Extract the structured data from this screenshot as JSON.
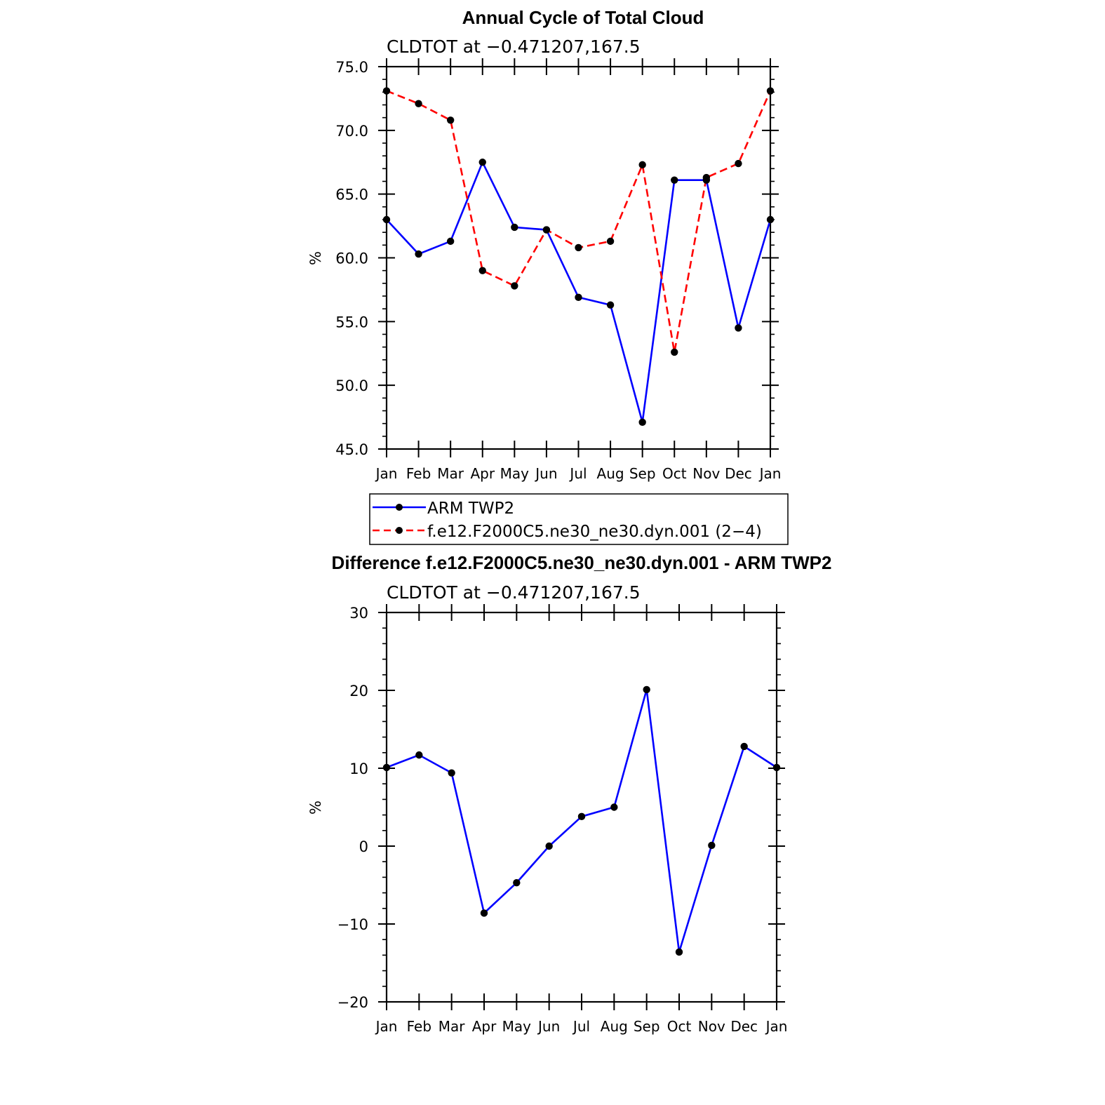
{
  "chart_data": [
    {
      "type": "line",
      "title": "Annual Cycle of Total Cloud",
      "subtitle": "CLDTOT at −0.471207,167.5",
      "ylabel": "%",
      "ylim": [
        45,
        75
      ],
      "yticks": [
        "75.0",
        "70.0",
        "65.0",
        "60.0",
        "55.0",
        "50.0",
        "45.0"
      ],
      "categories": [
        "Jan",
        "Feb",
        "Mar",
        "Apr",
        "May",
        "Jun",
        "Jul",
        "Aug",
        "Sep",
        "Oct",
        "Nov",
        "Dec",
        "Jan"
      ],
      "series": [
        {
          "name": "ARM TWP2",
          "color": "#0000ff",
          "dash": "solid",
          "values": [
            63.0,
            60.3,
            61.3,
            67.5,
            62.4,
            62.2,
            56.9,
            56.3,
            47.1,
            66.1,
            66.1,
            54.5,
            63.0
          ]
        },
        {
          "name": "f.e12.F2000C5.ne30_ne30.dyn.001 (2−4)",
          "color": "#ff0000",
          "dash": "dashed",
          "values": [
            73.1,
            72.1,
            70.8,
            59.0,
            57.8,
            62.2,
            60.8,
            61.3,
            67.3,
            52.6,
            66.3,
            67.4,
            73.1
          ]
        }
      ],
      "legend_position": "below plot"
    },
    {
      "type": "line",
      "title": "Difference f.e12.F2000C5.ne30_ne30.dyn.001 - ARM TWP2",
      "subtitle": "CLDTOT at −0.471207,167.5",
      "ylabel": "%",
      "ylim": [
        -20,
        30
      ],
      "yticks": [
        "30",
        "20",
        "10",
        "0",
        "−10",
        "−20"
      ],
      "categories": [
        "Jan",
        "Feb",
        "Mar",
        "Apr",
        "May",
        "Jun",
        "Jul",
        "Aug",
        "Sep",
        "Oct",
        "Nov",
        "Dec",
        "Jan"
      ],
      "series": [
        {
          "color": "#0000ff",
          "dash": "solid",
          "values": [
            10.1,
            11.7,
            9.4,
            -8.6,
            -4.7,
            0.0,
            3.8,
            5.0,
            20.1,
            -13.6,
            0.1,
            12.8,
            10.1
          ]
        }
      ]
    }
  ]
}
